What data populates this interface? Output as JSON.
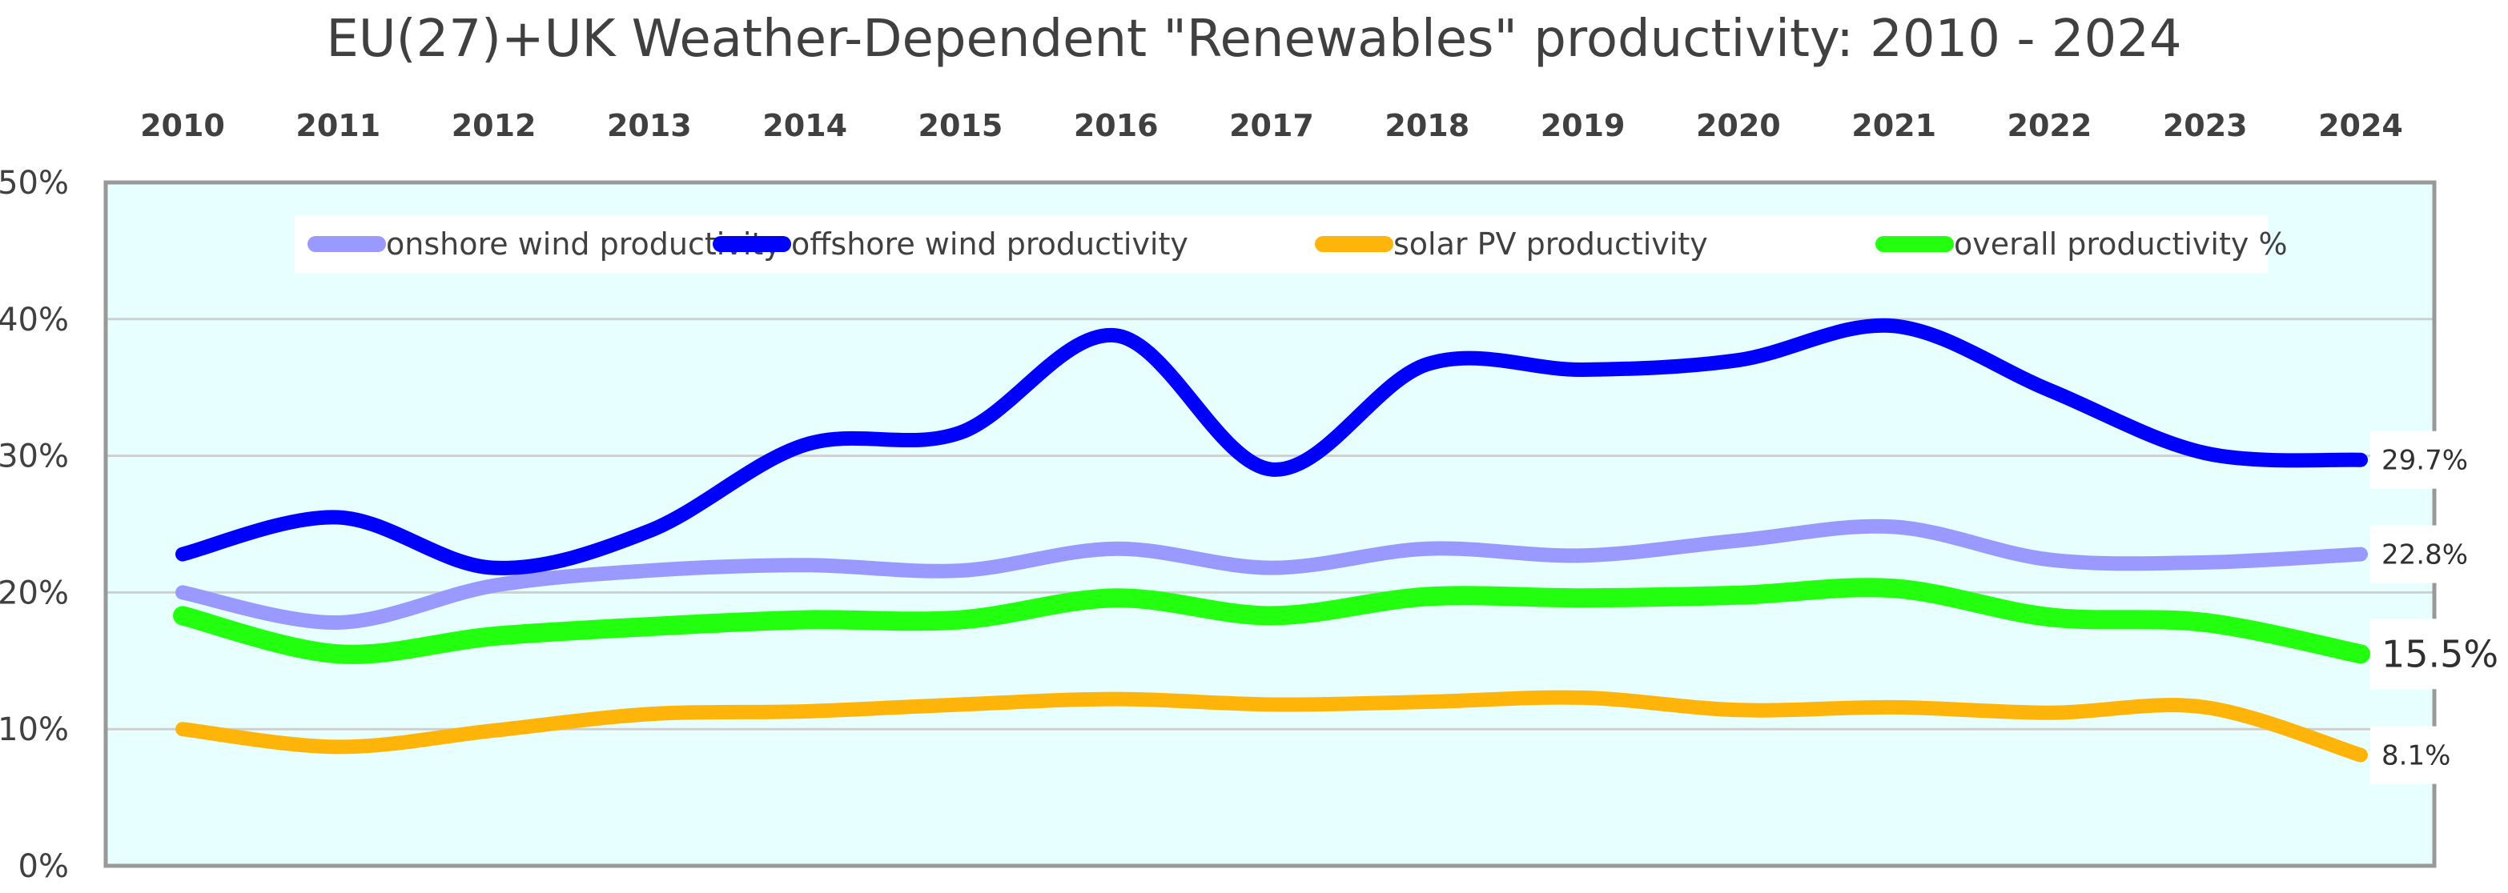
{
  "chart_data": {
    "type": "line",
    "title": "EU(27)+UK Weather-Dependent \"Renewables\" productivity:  2010 - 2024",
    "xlabel": "",
    "ylabel": "",
    "x": [
      "2010",
      "2011",
      "2012",
      "2013",
      "2014",
      "2015",
      "2016",
      "2017",
      "2018",
      "2019",
      "2020",
      "2021",
      "2022",
      "2023",
      "2024"
    ],
    "xaxis_position": "top",
    "ylim": [
      0,
      50
    ],
    "yticks": [
      0,
      10,
      20,
      30,
      40,
      50
    ],
    "ytick_labels": [
      "0%",
      "10%",
      "20%",
      "30%",
      "40%",
      "50%"
    ],
    "grid": true,
    "legend_position": "top-center",
    "plot_background": "#e8ffff",
    "smooth": true,
    "series": [
      {
        "name": "onshore wind productivity",
        "color": "#9999ff",
        "values": [
          20.0,
          17.8,
          20.5,
          21.6,
          22.0,
          21.6,
          23.2,
          21.8,
          23.2,
          22.7,
          23.8,
          24.8,
          22.4,
          22.2,
          22.8
        ],
        "end_label": "22.8%"
      },
      {
        "name": "offshore wind productivity",
        "color": "#0000ff",
        "values": [
          22.8,
          25.5,
          21.8,
          24.5,
          30.8,
          31.7,
          38.8,
          29.0,
          36.7,
          36.3,
          37.0,
          39.5,
          34.8,
          30.2,
          29.7
        ],
        "end_label": "29.7%"
      },
      {
        "name": "solar PV productivity",
        "color": "#ffb40a",
        "values": [
          10.0,
          8.7,
          9.9,
          11.1,
          11.3,
          11.8,
          12.2,
          11.8,
          12.0,
          12.3,
          11.4,
          11.6,
          11.2,
          11.6,
          8.1
        ],
        "end_label": "8.1%"
      },
      {
        "name": "overall productivity %",
        "color": "#22ff0f",
        "values": [
          18.3,
          15.5,
          16.8,
          17.5,
          18.0,
          18.0,
          19.6,
          18.3,
          19.7,
          19.6,
          19.8,
          20.3,
          18.2,
          17.8,
          15.5
        ],
        "end_label": "15.5%",
        "end_label_emphasis": true
      }
    ]
  }
}
